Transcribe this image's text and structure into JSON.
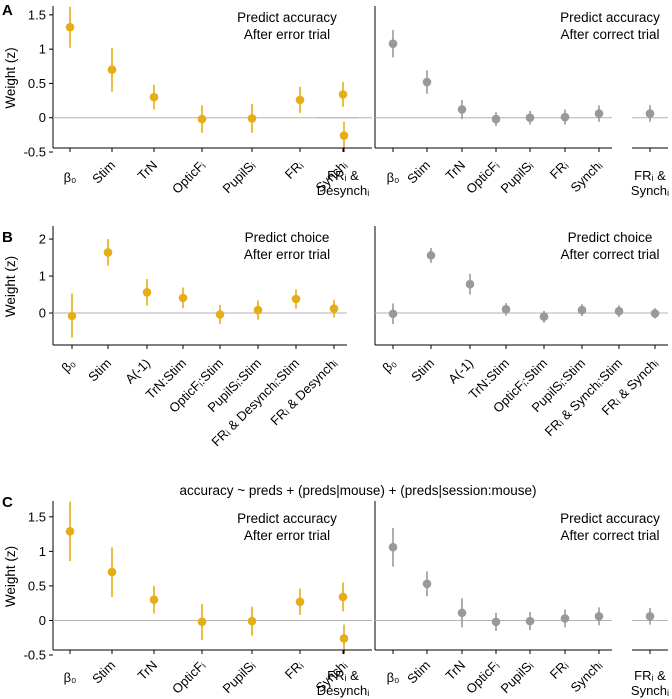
{
  "colors": {
    "error": "#E5AE17",
    "correct": "#999999",
    "zero": "#b3b3b3"
  },
  "ylabel": "Weight (z)",
  "formula": "accuracy ~ preds + (preds|mouse) + (preds|session:mouse)",
  "chart_data": [
    {
      "type": "scatter",
      "panel": "A",
      "condition": "error",
      "title_lines": [
        "Predict accuracy",
        "After error trial"
      ],
      "ylabel": "Weight (z)",
      "ylim": [
        -0.5,
        1.6
      ],
      "yticks": [
        -0.5,
        0,
        0.5,
        1,
        1.5
      ],
      "ytick_labels": [
        "-0.5",
        "0",
        "0.5",
        "1",
        "1.5"
      ],
      "categories": [
        [
          "β₀"
        ],
        [
          "Stim"
        ],
        [
          "TrN"
        ],
        [
          "OpticFᵢ"
        ],
        [
          "PupilSᵢ"
        ],
        [
          "FRᵢ"
        ],
        [
          "Synchᵢ"
        ]
      ],
      "means": [
        1.32,
        0.7,
        0.3,
        -0.02,
        -0.01,
        0.26,
        -0.26
      ],
      "lower": [
        1.02,
        0.38,
        0.12,
        -0.22,
        -0.22,
        0.07,
        -0.45
      ],
      "upper": [
        1.62,
        1.02,
        0.48,
        0.18,
        0.2,
        0.45,
        -0.06
      ],
      "extra": {
        "label": [
          "FRᵢ &",
          "Desynchᵢ"
        ],
        "mean": 0.34,
        "lower": 0.16,
        "upper": 0.52
      }
    },
    {
      "type": "scatter",
      "panel": "A",
      "condition": "correct",
      "title_lines": [
        "Predict accuracy",
        "After correct trial"
      ],
      "ylim": [
        -0.5,
        1.6
      ],
      "categories": [
        [
          "β₀"
        ],
        [
          "Stim"
        ],
        [
          "TrN"
        ],
        [
          "OpticFᵢ"
        ],
        [
          "PupilSᵢ"
        ],
        [
          "FRᵢ"
        ],
        [
          "Synchᵢ"
        ]
      ],
      "means": [
        1.08,
        0.52,
        0.12,
        -0.02,
        0.0,
        0.01,
        0.06
      ],
      "lower": [
        0.88,
        0.35,
        -0.02,
        -0.12,
        -0.1,
        -0.1,
        -0.06
      ],
      "upper": [
        1.28,
        0.69,
        0.26,
        0.08,
        0.1,
        0.12,
        0.18
      ],
      "extra": {
        "label": [
          "FRᵢ &",
          "Synchᵢ"
        ],
        "mean": 0.06,
        "lower": -0.06,
        "upper": 0.18
      }
    },
    {
      "type": "scatter",
      "panel": "B",
      "condition": "error",
      "title_lines": [
        "Predict choice",
        "After error trial"
      ],
      "ylabel": "Weight (z)",
      "ylim": [
        -1.0,
        2.3
      ],
      "yticks": [
        0,
        1,
        2
      ],
      "ytick_labels": [
        "0",
        "1",
        "2"
      ],
      "categories": [
        [
          "β₀"
        ],
        [
          "Stim"
        ],
        [
          "A(-1)"
        ],
        [
          "TrN:Stim"
        ],
        [
          "OpticFᵢ:Stim"
        ],
        [
          "PupilSᵢ:Stim"
        ],
        [
          "FRᵢ & Desynchᵢ:Stim"
        ],
        [
          "FRᵢ & Desynchᵢ"
        ]
      ],
      "means": [
        -0.08,
        1.64,
        0.56,
        0.41,
        -0.04,
        0.08,
        0.38,
        0.12
      ],
      "lower": [
        -0.66,
        1.28,
        0.2,
        0.13,
        -0.3,
        -0.18,
        0.12,
        -0.12
      ],
      "upper": [
        0.52,
        2.0,
        0.92,
        0.69,
        0.22,
        0.34,
        0.64,
        0.36
      ]
    },
    {
      "type": "scatter",
      "panel": "B",
      "condition": "correct",
      "title_lines": [
        "Predict choice",
        "After correct trial"
      ],
      "ylim": [
        -1.0,
        2.3
      ],
      "categories": [
        [
          "β₀"
        ],
        [
          "Stim"
        ],
        [
          "A(-1)"
        ],
        [
          "TrN:Stim"
        ],
        [
          "OpticFᵢ:Stim"
        ],
        [
          "PupilSᵢ:Stim"
        ],
        [
          "FRᵢ & Synchᵢ:Stim"
        ],
        [
          "FRᵢ & Synchᵢ"
        ]
      ],
      "means": [
        -0.02,
        1.56,
        0.78,
        0.1,
        -0.1,
        0.08,
        0.05,
        -0.01
      ],
      "lower": [
        -0.3,
        1.36,
        0.5,
        -0.07,
        -0.26,
        -0.08,
        -0.11,
        -0.15
      ],
      "upper": [
        0.26,
        1.76,
        1.06,
        0.27,
        0.06,
        0.24,
        0.21,
        0.13
      ]
    },
    {
      "type": "scatter",
      "panel": "C",
      "condition": "error",
      "title_lines": [
        "Predict accuracy",
        "After error trial"
      ],
      "ylabel": "Weight (z)",
      "ylim": [
        -0.5,
        1.7
      ],
      "yticks": [
        -0.5,
        0,
        0.5,
        1,
        1.5
      ],
      "ytick_labels": [
        "-0.5",
        "0",
        "0.5",
        "1",
        "1.5"
      ],
      "categories": [
        [
          "β₀"
        ],
        [
          "Stim"
        ],
        [
          "TrN"
        ],
        [
          "OpticFᵢ"
        ],
        [
          "PupilSᵢ"
        ],
        [
          "FRᵢ"
        ],
        [
          "Synchᵢ"
        ]
      ],
      "means": [
        1.29,
        0.7,
        0.3,
        -0.02,
        -0.01,
        0.27,
        -0.26
      ],
      "lower": [
        0.86,
        0.34,
        0.1,
        -0.28,
        -0.22,
        0.08,
        -0.46
      ],
      "upper": [
        1.72,
        1.06,
        0.5,
        0.24,
        0.2,
        0.46,
        -0.06
      ],
      "extra": {
        "label": [
          "FRᵢ &",
          "Desynchᵢ"
        ],
        "mean": 0.34,
        "lower": 0.13,
        "upper": 0.55
      }
    },
    {
      "type": "scatter",
      "panel": "C",
      "condition": "correct",
      "title_lines": [
        "Predict accuracy",
        "After correct trial"
      ],
      "ylim": [
        -0.5,
        1.7
      ],
      "categories": [
        [
          "β₀"
        ],
        [
          "Stim"
        ],
        [
          "TrN"
        ],
        [
          "OpticFᵢ"
        ],
        [
          "PupilSᵢ"
        ],
        [
          "FRᵢ"
        ],
        [
          "Synchᵢ"
        ]
      ],
      "means": [
        1.06,
        0.53,
        0.11,
        -0.02,
        -0.01,
        0.03,
        0.06
      ],
      "lower": [
        0.78,
        0.35,
        -0.1,
        -0.15,
        -0.14,
        -0.1,
        -0.07
      ],
      "upper": [
        1.34,
        0.71,
        0.32,
        0.11,
        0.12,
        0.16,
        0.19
      ],
      "extra": {
        "label": [
          "FRᵢ &",
          "Synchᵢ"
        ],
        "mean": 0.06,
        "lower": -0.06,
        "upper": 0.18
      }
    }
  ]
}
